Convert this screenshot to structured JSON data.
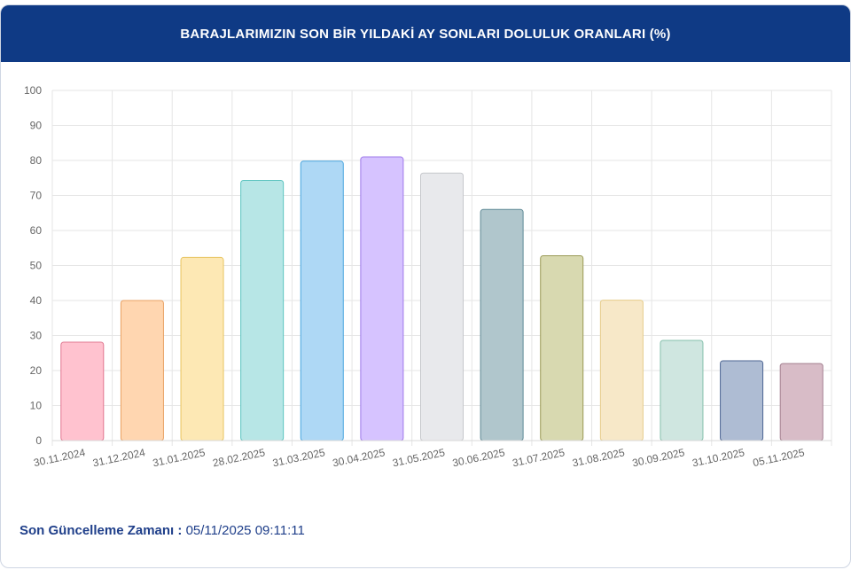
{
  "header": {
    "title": "BARAJLARIMIZIN SON BİR YILDAKİ AY SONLARI DOLULUK ORANLARI (%)"
  },
  "footer": {
    "label": "Son Güncelleme Zamanı :",
    "value": "05/11/2025 09:11:11"
  },
  "chart_data": {
    "type": "bar",
    "title": "BARAJLARIMIZIN SON BİR YILDAKİ AY SONLARI DOLULUK ORANLARI (%)",
    "xlabel": "",
    "ylabel": "",
    "ylim": [
      0,
      100
    ],
    "yticks": [
      0,
      10,
      20,
      30,
      40,
      50,
      60,
      70,
      80,
      90,
      100
    ],
    "grid": true,
    "categories": [
      "30.11.2024",
      "31.12.2024",
      "31.01.2025",
      "28.02.2025",
      "31.03.2025",
      "30.04.2025",
      "31.05.2025",
      "30.06.2025",
      "31.07.2025",
      "31.08.2025",
      "30.09.2025",
      "31.10.2025",
      "05.11.2025"
    ],
    "values": [
      28.1,
      40.0,
      52.3,
      74.3,
      79.8,
      81.0,
      76.4,
      66.0,
      52.8,
      40.1,
      28.6,
      22.8,
      22.0
    ],
    "fill_colors": [
      "#ffc2cf",
      "#ffd6b0",
      "#fde8b4",
      "#b7e6e6",
      "#aed8f5",
      "#d6c3ff",
      "#e8e9ec",
      "#b0c6cc",
      "#d8d9b0",
      "#f7e8c8",
      "#cfe6e0",
      "#aebcd3",
      "#d8bcc7"
    ],
    "border_colors": [
      "#e0768f",
      "#e8a062",
      "#e8c460",
      "#5cc4c0",
      "#4aa6df",
      "#9e78ea",
      "#c6c8cc",
      "#5f8a96",
      "#9a9a56",
      "#e6cc8a",
      "#86c0ac",
      "#4d6693",
      "#a37f8f"
    ]
  }
}
